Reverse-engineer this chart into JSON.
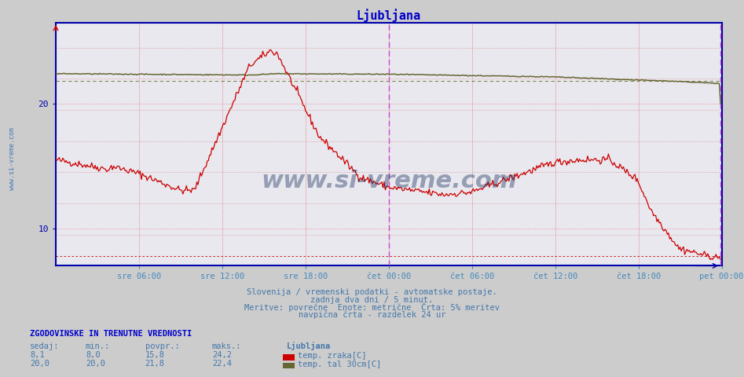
{
  "title": "Ljubljana",
  "title_color": "#0000cc",
  "bg_color": "#cccccc",
  "plot_bg_color": "#e8e8ee",
  "axis_color": "#0000bb",
  "x_tick_labels": [
    "sre 06:00",
    "sre 12:00",
    "sre 18:00",
    "čet 00:00",
    "čet 06:00",
    "čet 12:00",
    "čet 18:00",
    "pet 00:00"
  ],
  "y_min": 7.0,
  "y_max": 26.5,
  "y_ticks": [
    10,
    20
  ],
  "subtitle1": "Slovenija / vremenski podatki - avtomatske postaje.",
  "subtitle2": "zadnja dva dni / 5 minut.",
  "subtitle3": "Meritve: povrečne  Enote: metrične  Črta: 5% meritev",
  "subtitle4": "navpična črta - razdelek 24 ur",
  "text_subtitle_color": "#4477aa",
  "legend_title": "ZGODOVINSKE IN TRENUTNE VREDNOSTI",
  "legend_title_color": "#0000cc",
  "col_headers": [
    "sedaj:",
    "min.:",
    "povpr.:",
    "maks.:"
  ],
  "row1_vals": [
    "8,1",
    "8,0",
    "15,8",
    "24,2"
  ],
  "row2_vals": [
    "20,0",
    "20,0",
    "21,8",
    "22,4"
  ],
  "series1_label": "temp. zraka[C]",
  "series1_color": "#cc0000",
  "series2_label": "temp. tal 30cm[C]",
  "series2_color": "#666633",
  "watermark": "www.si-vreme.com",
  "watermark_color": "#1a3060",
  "watermark_alpha": 0.4,
  "left_label": "www.si-vreme.com",
  "left_label_color": "#4477bb"
}
